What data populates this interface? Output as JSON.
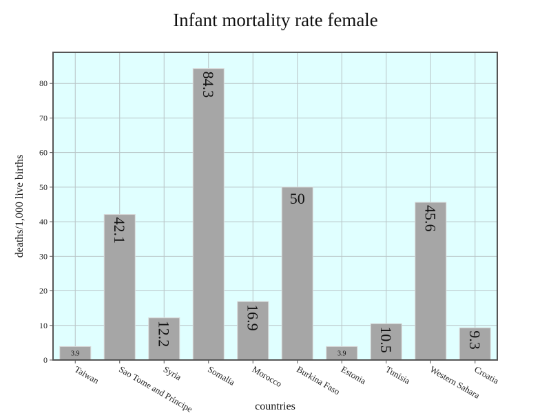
{
  "chart_data": {
    "type": "bar",
    "title": "Infant mortality rate female",
    "xlabel": "countries",
    "ylabel": "deaths/1,000 live births",
    "categories": [
      "Taiwan",
      "Sao Tome and Principe",
      "Syria",
      "Somalia",
      "Morocco",
      "Burkina Faso",
      "Estonia",
      "Tunisia",
      "Western Sahara",
      "Croatia"
    ],
    "values": [
      3.9,
      42.1,
      12.2,
      84.3,
      16.9,
      50,
      3.9,
      10.5,
      45.6,
      9.3
    ],
    "data_labels": [
      "3.9",
      "42.1",
      "12.2",
      "84.3",
      "16.9",
      "50",
      "3.9",
      "10.5",
      "45.6",
      "9.3"
    ],
    "ylim": [
      0,
      89
    ],
    "yticks": [
      0,
      10,
      20,
      30,
      40,
      50,
      60,
      70,
      80
    ],
    "grid": true,
    "colors": {
      "bar": "#a6a6a6",
      "plot_background": "#e0ffff",
      "grid": "#b8c4c6",
      "frame": "#555555"
    }
  }
}
